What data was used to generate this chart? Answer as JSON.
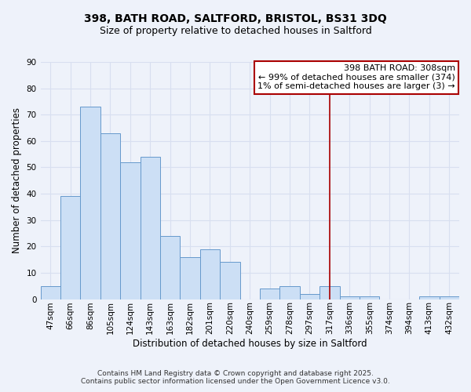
{
  "title": "398, BATH ROAD, SALTFORD, BRISTOL, BS31 3DQ",
  "subtitle": "Size of property relative to detached houses in Saltford",
  "xlabel": "Distribution of detached houses by size in Saltford",
  "ylabel": "Number of detached properties",
  "bar_labels": [
    "47sqm",
    "66sqm",
    "86sqm",
    "105sqm",
    "124sqm",
    "143sqm",
    "163sqm",
    "182sqm",
    "201sqm",
    "220sqm",
    "240sqm",
    "259sqm",
    "278sqm",
    "297sqm",
    "317sqm",
    "336sqm",
    "355sqm",
    "374sqm",
    "394sqm",
    "413sqm",
    "432sqm"
  ],
  "bar_values": [
    5,
    39,
    73,
    63,
    52,
    54,
    24,
    16,
    19,
    14,
    0,
    4,
    5,
    2,
    5,
    1,
    1,
    0,
    0,
    1,
    1
  ],
  "bar_color": "#ccdff5",
  "bar_edge_color": "#6699cc",
  "ylim": [
    0,
    90
  ],
  "yticks": [
    0,
    10,
    20,
    30,
    40,
    50,
    60,
    70,
    80,
    90
  ],
  "vline_x_index": 14,
  "vline_color": "#aa0000",
  "annotation_title": "398 BATH ROAD: 308sqm",
  "annotation_line1": "← 99% of detached houses are smaller (374)",
  "annotation_line2": "1% of semi-detached houses are larger (3) →",
  "annotation_box_color": "#ffffff",
  "annotation_box_edge": "#aa0000",
  "footnote1": "Contains HM Land Registry data © Crown copyright and database right 2025.",
  "footnote2": "Contains public sector information licensed under the Open Government Licence v3.0.",
  "background_color": "#eef2fa",
  "grid_color": "#d8dff0",
  "title_fontsize": 10,
  "subtitle_fontsize": 9,
  "axis_label_fontsize": 8.5,
  "tick_fontsize": 7.5,
  "annotation_fontsize": 8,
  "footnote_fontsize": 6.5
}
